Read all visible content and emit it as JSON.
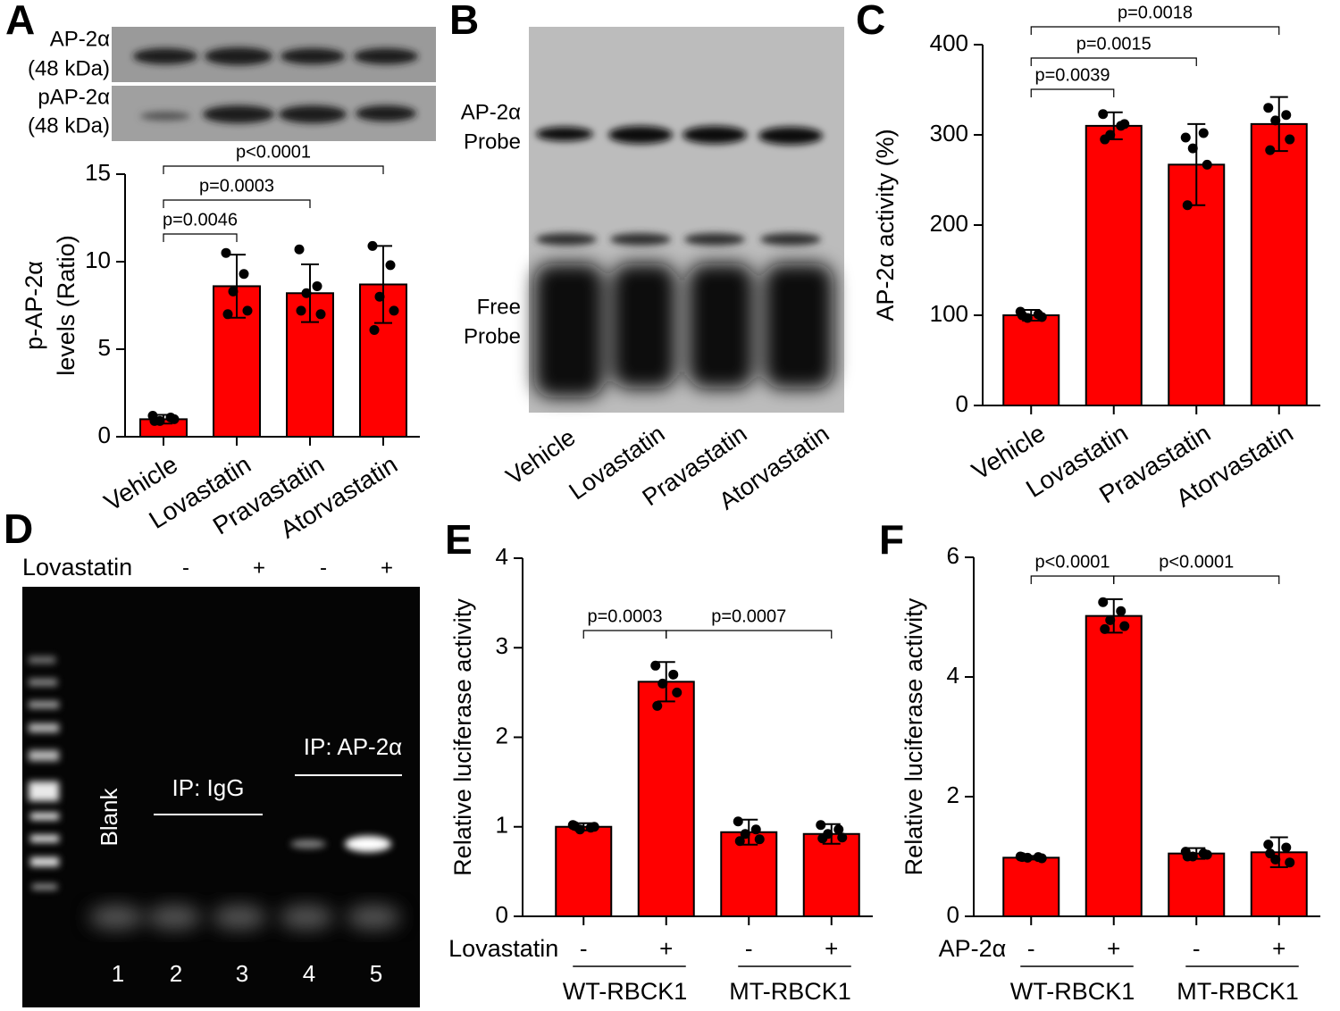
{
  "labels": {
    "panel_letters": [
      "A",
      "B",
      "C",
      "D",
      "E",
      "F"
    ],
    "blot_a": [
      "AP-2α",
      "(48 kDa)",
      "pAP-2α",
      "(48 kDa)"
    ],
    "gel_b": {
      "bands": [
        "AP-2α",
        "Probe",
        "Free",
        "Probe"
      ],
      "lanes": [
        "Vehicle",
        "Lovastatin",
        "Pravastatin",
        "Atorvastatin"
      ]
    },
    "gel_d": {
      "treatment": "Lovastatin",
      "signs": [
        "-",
        "+",
        "-",
        "+"
      ],
      "blank": "Blank",
      "igg": "IP: IgG",
      "ap2": "IP: AP-2α",
      "lanes": [
        "1",
        "2",
        "3",
        "4",
        "5"
      ]
    }
  },
  "chart_data": [
    {
      "type": "bar",
      "ylabel": [
        "p-AP-2α",
        "levels (Ratio)"
      ],
      "categories": [
        "Vehicle",
        "Lovastatin",
        "Pravastatin",
        "Atorvastatin"
      ],
      "values": [
        1.0,
        8.6,
        8.2,
        8.7
      ],
      "errors": [
        0.25,
        1.8,
        1.65,
        2.2
      ],
      "points": [
        [
          1.2,
          1.1,
          0.9,
          1.0,
          0.9
        ],
        [
          10.5,
          9.3,
          8.3,
          7.2,
          7.0
        ],
        [
          10.7,
          8.6,
          8.2,
          7.0,
          7.2
        ],
        [
          10.9,
          9.8,
          8.0,
          7.2,
          6.1
        ]
      ],
      "color": "#ff0000",
      "ylim": [
        0,
        15
      ],
      "yticks": [
        0,
        5,
        10,
        15
      ],
      "comparisons": [
        {
          "label": "p=0.0046",
          "pair": [
            0,
            1
          ]
        },
        {
          "label": "p=0.0003",
          "pair": [
            0,
            2
          ]
        },
        {
          "label": "p<0.0001",
          "pair": [
            0,
            3
          ]
        }
      ]
    },
    {
      "type": "bar",
      "ylabel": "AP-2α activity (%)",
      "categories": [
        "Vehicle",
        "Lovastatin",
        "Pravastatin",
        "Atorvastatin"
      ],
      "values": [
        100,
        310,
        267,
        312
      ],
      "errors": [
        6,
        15,
        45,
        30
      ],
      "points": [
        [
          104,
          101,
          97,
          98,
          100
        ],
        [
          323,
          310,
          300,
          312,
          295
        ],
        [
          297,
          302,
          285,
          267,
          222
        ],
        [
          330,
          322,
          316,
          295,
          283
        ]
      ],
      "color": "#ff0000",
      "ylim": [
        0,
        400
      ],
      "yticks": [
        0,
        100,
        200,
        300,
        400
      ],
      "comparisons": [
        {
          "label": "p=0.0039",
          "pair": [
            0,
            1
          ]
        },
        {
          "label": "p=0.0015",
          "pair": [
            0,
            2
          ]
        },
        {
          "label": "p=0.0018",
          "pair": [
            0,
            3
          ]
        }
      ]
    },
    {
      "type": "bar",
      "ylabel": "Relative luciferase activity",
      "factor": "Lovastatin",
      "categories": [
        "-",
        "+",
        "-",
        "+"
      ],
      "groups": [
        "WT-RBCK1",
        "MT-RBCK1"
      ],
      "values": [
        1.0,
        2.62,
        0.94,
        0.92
      ],
      "errors": [
        0.04,
        0.22,
        0.14,
        0.11
      ],
      "points": [
        [
          1.02,
          0.99,
          0.97,
          1.0,
          1.01
        ],
        [
          2.8,
          2.7,
          2.6,
          2.5,
          2.35
        ],
        [
          1.06,
          0.97,
          0.92,
          0.86,
          0.84
        ],
        [
          1.02,
          0.97,
          0.92,
          0.88,
          0.87
        ]
      ],
      "color": "#ff0000",
      "ylim": [
        0,
        4
      ],
      "yticks": [
        0,
        1,
        2,
        3,
        4
      ],
      "comparisons": [
        {
          "label": "p=0.0003",
          "pair": [
            0,
            1
          ]
        },
        {
          "label": "p=0.0007",
          "pair": [
            1,
            3
          ]
        }
      ]
    },
    {
      "type": "bar",
      "ylabel": "Relative luciferase activity",
      "factor": "AP-2α",
      "categories": [
        "-",
        "+",
        "-",
        "+"
      ],
      "groups": [
        "WT-RBCK1",
        "MT-RBCK1"
      ],
      "values": [
        0.98,
        5.02,
        1.05,
        1.07
      ],
      "errors": [
        0.03,
        0.28,
        0.09,
        0.25
      ],
      "points": [
        [
          1.0,
          0.99,
          0.98,
          0.97,
          0.99
        ],
        [
          5.25,
          5.1,
          4.95,
          4.85,
          4.8
        ],
        [
          1.08,
          1.05,
          1.0,
          1.03,
          1.0
        ],
        [
          1.2,
          1.15,
          0.95,
          0.9,
          1.05
        ]
      ],
      "color": "#ff0000",
      "ylim": [
        0,
        6
      ],
      "yticks": [
        0,
        2,
        4,
        6
      ],
      "comparisons": [
        {
          "label": "p<0.0001",
          "pair": [
            0,
            1
          ]
        },
        {
          "label": "p<0.0001",
          "pair": [
            1,
            3
          ]
        }
      ]
    }
  ]
}
